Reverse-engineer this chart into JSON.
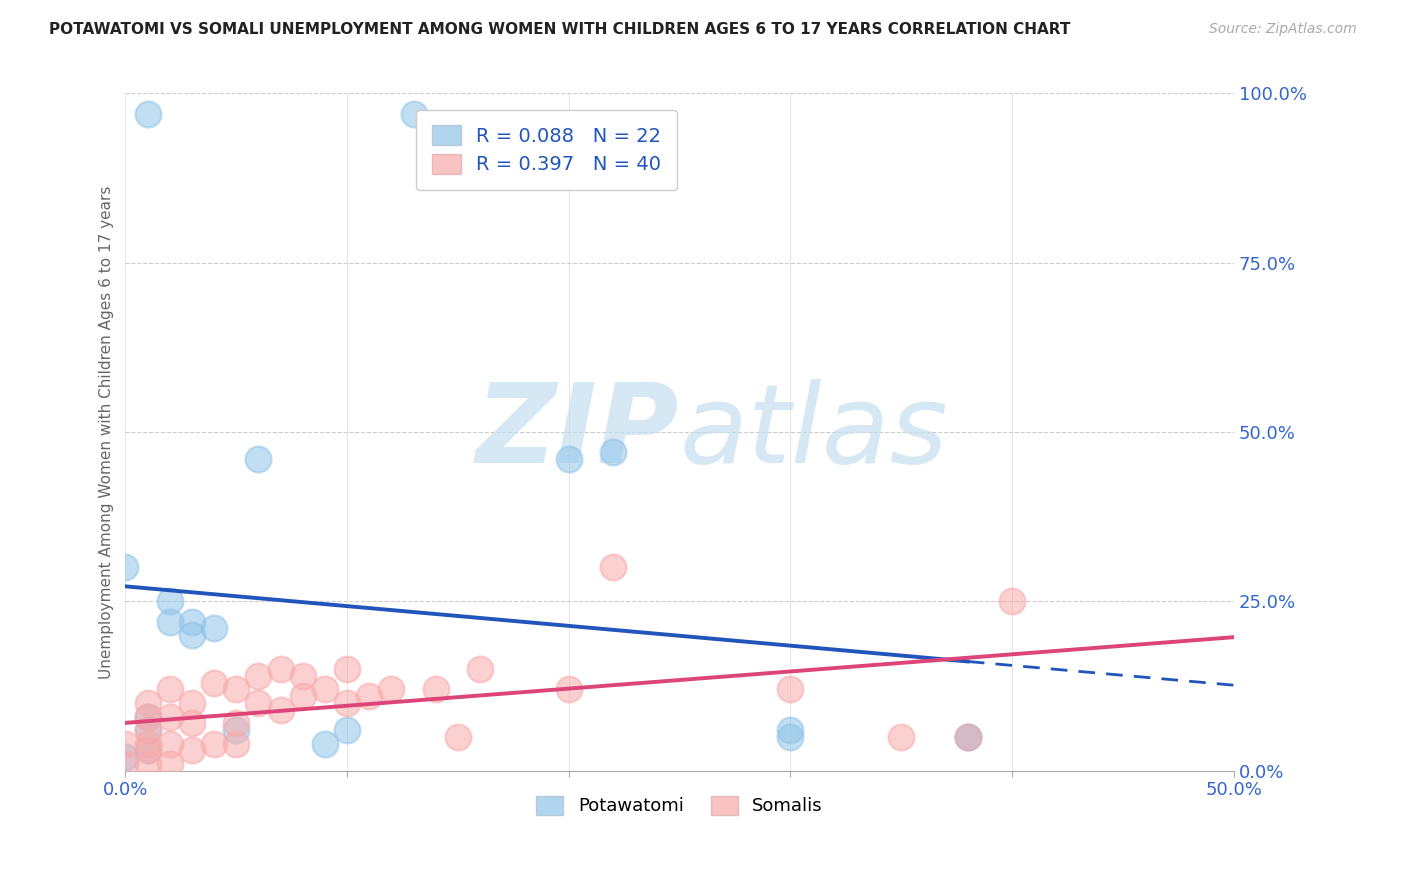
{
  "title": "POTAWATOMI VS SOMALI UNEMPLOYMENT AMONG WOMEN WITH CHILDREN AGES 6 TO 17 YEARS CORRELATION CHART",
  "source": "Source: ZipAtlas.com",
  "ylabel": "Unemployment Among Women with Children Ages 6 to 17 years",
  "xlim": [
    0.0,
    0.5
  ],
  "ylim": [
    0.0,
    1.0
  ],
  "xticks": [
    0.0,
    0.1,
    0.2,
    0.3,
    0.4,
    0.5
  ],
  "xticklabels": [
    "0.0%",
    "",
    "",
    "",
    "",
    "50.0%"
  ],
  "yticks_right": [
    0.0,
    0.25,
    0.5,
    0.75,
    1.0
  ],
  "yticklabels_right": [
    "0.0%",
    "25.0%",
    "50.0%",
    "75.0%",
    "100.0%"
  ],
  "potawatomi_color": "#90c4e8",
  "somali_color": "#f9aaaa",
  "potawatomi_line_color": "#2255bb",
  "somali_line_color": "#dd4477",
  "R_potawatomi": 0.088,
  "N_potawatomi": 22,
  "R_somali": 0.397,
  "N_somali": 40,
  "potawatomi_x": [
    0.0,
    0.0,
    0.01,
    0.01,
    0.01,
    0.01,
    0.02,
    0.02,
    0.03,
    0.03,
    0.04,
    0.05,
    0.06,
    0.09,
    0.1,
    0.13,
    0.2,
    0.22,
    0.3,
    0.3,
    0.38,
    0.38
  ],
  "potawatomi_y": [
    0.3,
    0.02,
    0.97,
    0.03,
    0.06,
    0.08,
    0.22,
    0.25,
    0.2,
    0.22,
    0.21,
    0.06,
    0.46,
    0.04,
    0.06,
    0.97,
    0.46,
    0.47,
    0.05,
    0.06,
    0.05,
    0.05
  ],
  "somali_x": [
    0.0,
    0.0,
    0.01,
    0.01,
    0.01,
    0.01,
    0.01,
    0.01,
    0.02,
    0.02,
    0.02,
    0.02,
    0.03,
    0.03,
    0.03,
    0.04,
    0.04,
    0.05,
    0.05,
    0.05,
    0.06,
    0.06,
    0.07,
    0.07,
    0.08,
    0.08,
    0.09,
    0.1,
    0.1,
    0.11,
    0.12,
    0.14,
    0.15,
    0.16,
    0.2,
    0.22,
    0.3,
    0.35,
    0.38,
    0.4
  ],
  "somali_y": [
    0.01,
    0.04,
    0.01,
    0.03,
    0.04,
    0.06,
    0.08,
    0.1,
    0.01,
    0.04,
    0.08,
    0.12,
    0.03,
    0.07,
    0.1,
    0.04,
    0.13,
    0.04,
    0.07,
    0.12,
    0.1,
    0.14,
    0.09,
    0.15,
    0.11,
    0.14,
    0.12,
    0.1,
    0.15,
    0.11,
    0.12,
    0.12,
    0.05,
    0.15,
    0.12,
    0.3,
    0.12,
    0.05,
    0.05,
    0.25
  ],
  "background_color": "#ffffff",
  "grid_color": "#cccccc",
  "watermark_zip_color": "#c8dff0",
  "watermark_atlas_color": "#c8ddf0"
}
